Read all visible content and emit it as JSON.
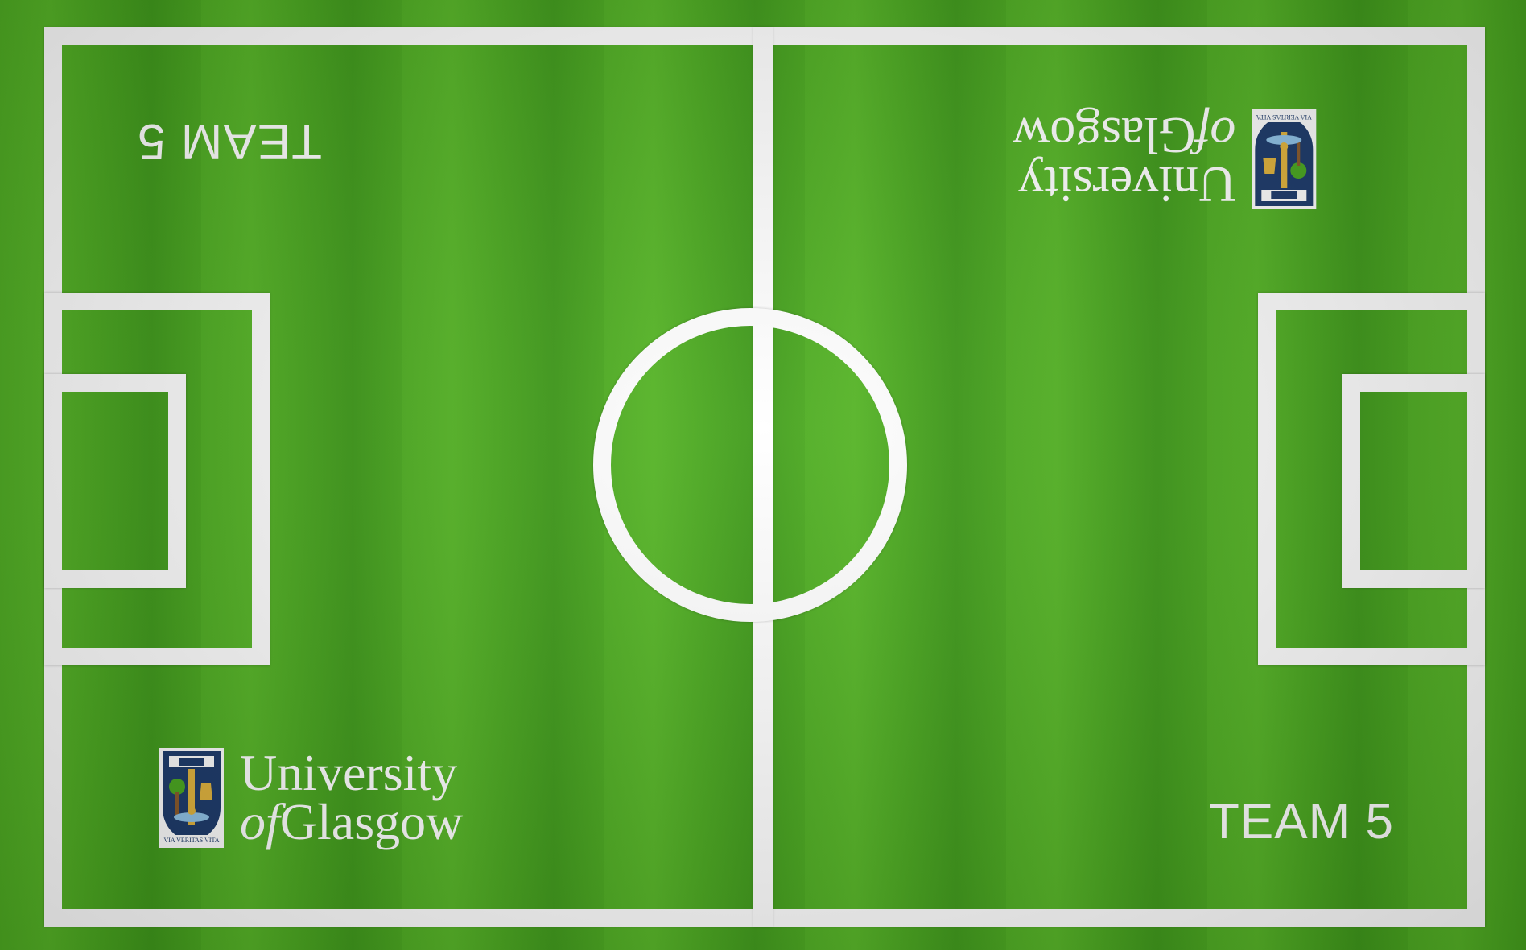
{
  "teams": {
    "top_left_label": "TEAM 5",
    "bottom_right_label": "TEAM 5"
  },
  "logo": {
    "line1": "University",
    "line2_of": "of",
    "line2_rest": "Glasgow",
    "motto": "VIA VERITAS VITA"
  },
  "colors": {
    "grass_light": "#56b626",
    "grass_dark": "#3f9a1a",
    "lines": "#ffffff",
    "crest_blue": "#1c3a6b",
    "crest_gold": "#e2b43c"
  },
  "icons": [
    "university-crest-icon"
  ]
}
